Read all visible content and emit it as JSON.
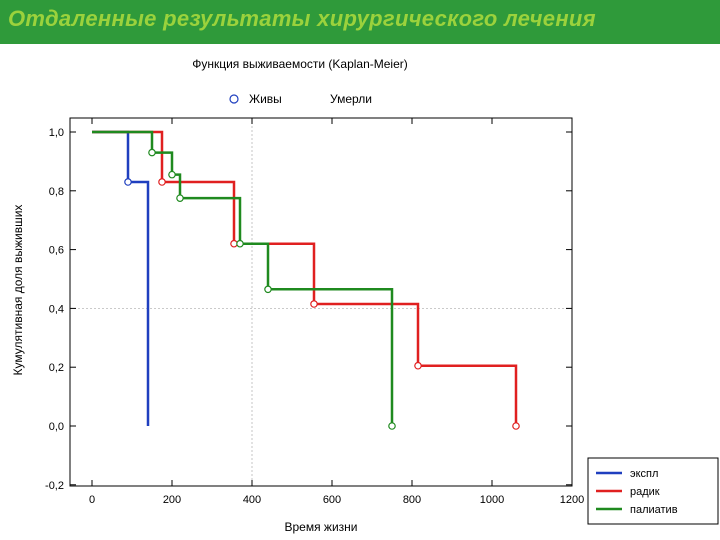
{
  "slide": {
    "title": "Отдаленные результаты хирургического лечения",
    "header_color": "#2f9a3a",
    "title_color": "#9bd23c"
  },
  "chart_data": {
    "type": "line",
    "step": true,
    "title": "Функция выживаемости (Kaplan-Meier)",
    "marker_legend": {
      "alive_label": "Живы",
      "dead_label": "Умерли"
    },
    "xlabel": "Время жизни",
    "ylabel": "Кумулятивная доля выживших",
    "xlim": [
      -50,
      1200
    ],
    "ylim": [
      -0.2,
      1.05
    ],
    "xticks": [
      "0",
      "200",
      "400",
      "600",
      "800",
      "1000",
      "1200"
    ],
    "yticks": [
      "-0,2",
      "0,0",
      "0,2",
      "0,4",
      "0,6",
      "0,8",
      "1,0"
    ],
    "grid": "reference lines at x=400 and y=0.4",
    "legend_position": "bottom-right",
    "series": [
      {
        "name": "экспл",
        "color": "#1f3fbf",
        "steps": [
          [
            0,
            1.0
          ],
          [
            90,
            0.83
          ],
          [
            140,
            0.0
          ]
        ],
        "censored": [
          [
            90,
            0.83
          ]
        ],
        "end_x": 140
      },
      {
        "name": "радик",
        "color": "#e02020",
        "steps": [
          [
            0,
            1.0
          ],
          [
            175,
            0.83
          ],
          [
            355,
            0.62
          ],
          [
            555,
            0.415
          ],
          [
            815,
            0.205
          ],
          [
            1060,
            0.0
          ]
        ],
        "censored": [
          [
            175,
            0.83
          ],
          [
            355,
            0.62
          ],
          [
            555,
            0.415
          ],
          [
            815,
            0.205
          ],
          [
            1060,
            0.0
          ]
        ],
        "end_x": 1060
      },
      {
        "name": "палиатив",
        "color": "#1f8a1f",
        "steps": [
          [
            0,
            1.0
          ],
          [
            150,
            0.93
          ],
          [
            200,
            0.855
          ],
          [
            220,
            0.775
          ],
          [
            370,
            0.62
          ],
          [
            440,
            0.465
          ],
          [
            750,
            0.0
          ]
        ],
        "censored": [
          [
            150,
            0.93
          ],
          [
            200,
            0.855
          ],
          [
            220,
            0.775
          ],
          [
            370,
            0.62
          ],
          [
            440,
            0.465
          ],
          [
            750,
            0.0
          ]
        ],
        "end_x": 750
      }
    ]
  }
}
